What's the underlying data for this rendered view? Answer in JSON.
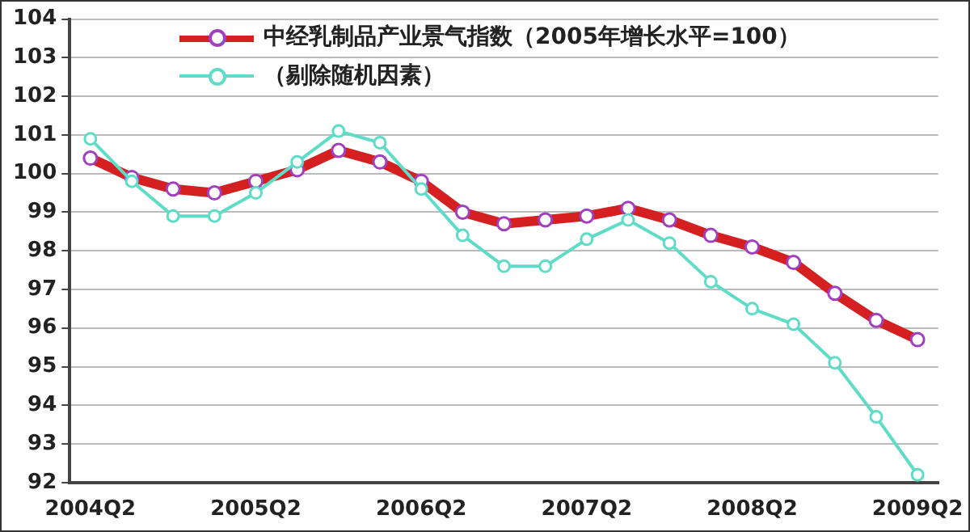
{
  "chart_data": {
    "type": "line",
    "categories": [
      "2004Q2",
      null,
      null,
      null,
      "2005Q2",
      null,
      null,
      null,
      "2006Q2",
      null,
      null,
      null,
      "2007Q2",
      null,
      null,
      null,
      "2008Q2",
      null,
      null,
      null,
      "2009Q2"
    ],
    "series": [
      {
        "name": "中经乳制品产业景气指数（2005年增长水平=100）",
        "color": "#d42020",
        "values": [
          100.4,
          99.9,
          99.6,
          99.5,
          99.8,
          100.1,
          100.6,
          100.3,
          99.8,
          99.0,
          98.7,
          98.8,
          98.9,
          99.1,
          98.8,
          98.4,
          98.1,
          97.7,
          96.9,
          96.2,
          95.7
        ]
      },
      {
        "name": "（剔除随机因素）",
        "color": "#5fdcc8",
        "values": [
          100.9,
          99.8,
          98.9,
          98.9,
          99.5,
          100.3,
          101.1,
          100.8,
          99.6,
          98.4,
          97.6,
          97.6,
          98.3,
          98.8,
          98.2,
          97.2,
          96.5,
          96.1,
          95.1,
          93.7,
          92.2
        ]
      }
    ],
    "ylim": [
      92,
      104
    ],
    "yticks": [
      92,
      93,
      94,
      95,
      96,
      97,
      98,
      99,
      100,
      101,
      102,
      103,
      104
    ],
    "grid": "y",
    "legend": "top",
    "marker": "circle",
    "line_style": "solid"
  }
}
